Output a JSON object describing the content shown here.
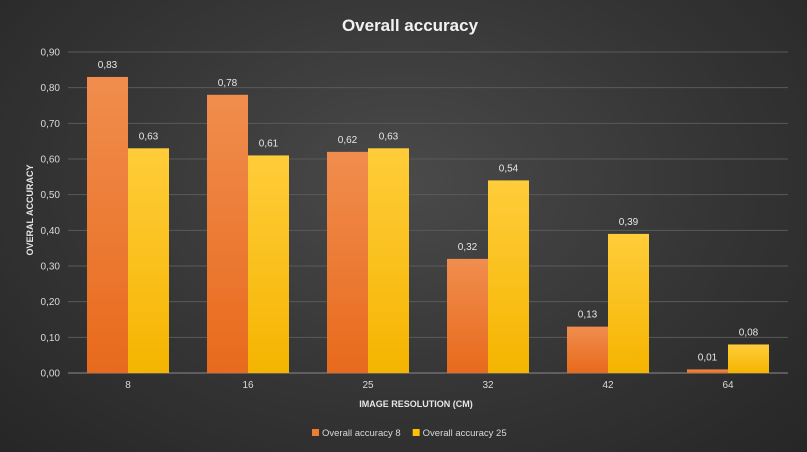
{
  "chart_data": {
    "type": "bar",
    "title": "Overall accuracy",
    "xlabel": "IMAGE RESOLUTION (CM)",
    "ylabel": "OVERAL ACCURACY",
    "categories": [
      "8",
      "16",
      "25",
      "32",
      "42",
      "64"
    ],
    "ylim": [
      0,
      0.9
    ],
    "yticks": [
      0,
      0.1,
      0.2,
      0.3,
      0.4,
      0.5,
      0.6,
      0.7,
      0.8,
      0.9
    ],
    "ytick_labels": [
      "0,00",
      "0,10",
      "0,20",
      "0,30",
      "0,40",
      "0,50",
      "0,60",
      "0,70",
      "0,80",
      "0,90"
    ],
    "grid": true,
    "legend_position": "bottom",
    "series": [
      {
        "name": "Overall accuracy 8",
        "color": "#ed7d31",
        "values": [
          0.83,
          0.78,
          0.62,
          0.32,
          0.13,
          0.01
        ],
        "labels": [
          "0,83",
          "0,78",
          "0,62",
          "0,32",
          "0,13",
          "0,01"
        ]
      },
      {
        "name": "Overall accuracy 25",
        "color": "#ffc000",
        "values": [
          0.63,
          0.61,
          0.63,
          0.54,
          0.39,
          0.08
        ],
        "labels": [
          "0,63",
          "0,61",
          "0,63",
          "0,54",
          "0,39",
          "0,08"
        ]
      }
    ]
  }
}
